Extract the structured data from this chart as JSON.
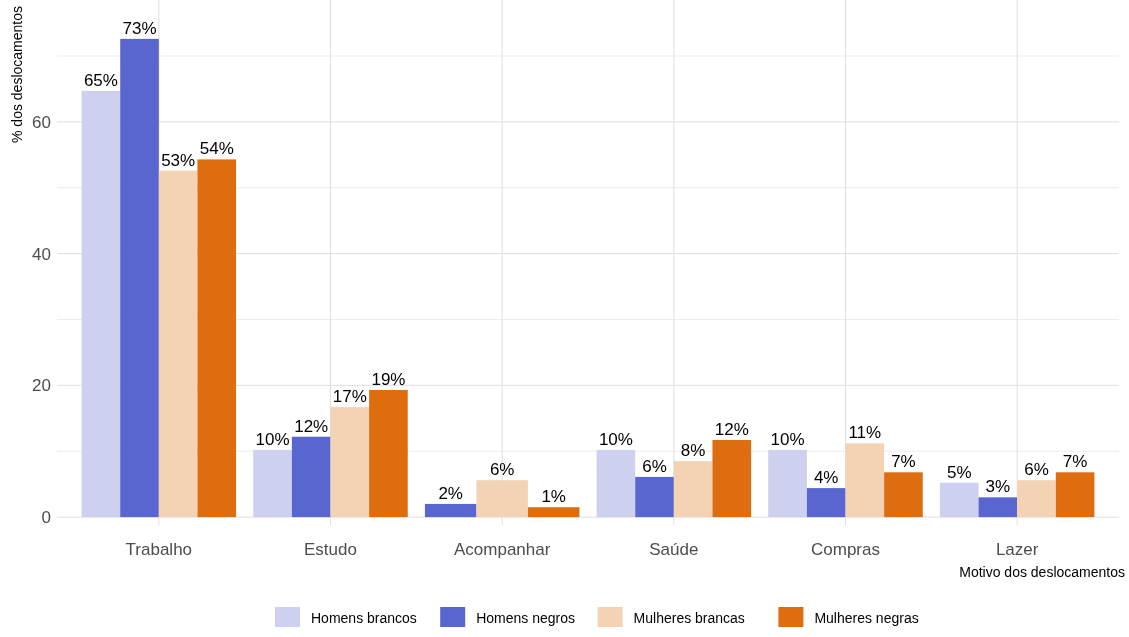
{
  "chart_data": {
    "type": "bar",
    "xlabel": "Motivo dos deslocamentos",
    "ylabel": "% dos deslocamentos",
    "categories": [
      "Trabalho",
      "Estudo",
      "Acompanhar",
      "Saúde",
      "Compras",
      "Lazer"
    ],
    "series": [
      {
        "name": "Homens brancos",
        "color": "#cdd0ee",
        "values": [
          64.7,
          10.2,
          null,
          10.2,
          10.2,
          5.2
        ],
        "value_labels": [
          "65%",
          "10%",
          null,
          "10%",
          "10%",
          "5%"
        ]
      },
      {
        "name": "Homens negros",
        "color": "#5a66d0",
        "values": [
          72.6,
          12.2,
          2.0,
          6.1,
          4.4,
          3.0
        ],
        "value_labels": [
          "73%",
          "12%",
          "2%",
          "6%",
          "4%",
          "3%"
        ]
      },
      {
        "name": "Mulheres brancas",
        "color": "#f4d3b4",
        "values": [
          52.6,
          16.7,
          5.6,
          8.5,
          11.2,
          5.6
        ],
        "value_labels": [
          "53%",
          "17%",
          "6%",
          "8%",
          "11%",
          "6%"
        ]
      },
      {
        "name": "Mulheres negras",
        "color": "#dd6d0f",
        "values": [
          54.3,
          19.3,
          1.5,
          11.7,
          6.8,
          6.8
        ],
        "value_labels": [
          "54%",
          "19%",
          "1%",
          "12%",
          "7%",
          "7%"
        ]
      }
    ],
    "ylim": [
      -1.2,
      78.5
    ],
    "yticks": [
      0,
      {
        "value": 10,
        "label": null
      },
      20,
      {
        "value": 30,
        "label": null
      },
      40,
      {
        "value": 50,
        "label": null
      },
      60,
      {
        "value": 70,
        "label": null
      }
    ],
    "grid": true,
    "legend": "bottom"
  }
}
